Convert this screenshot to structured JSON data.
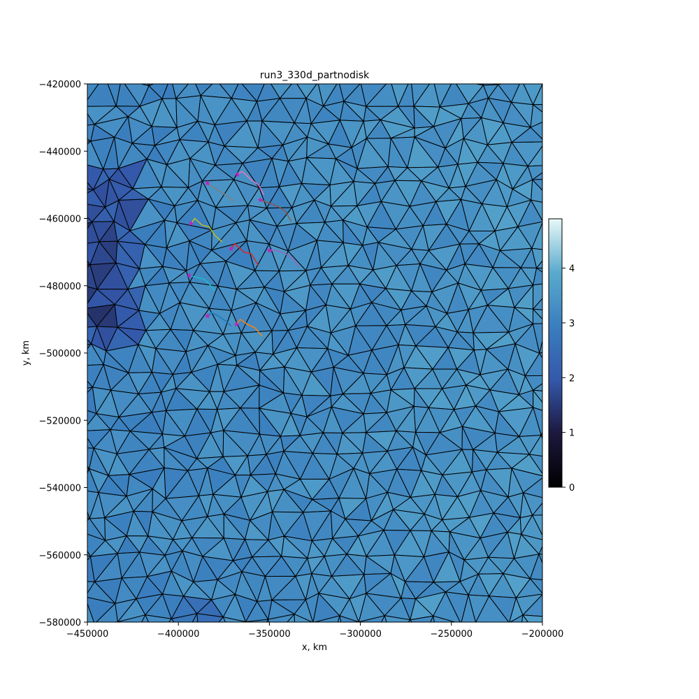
{
  "chart_data": {
    "type": "heatmap",
    "title": "run3_330d_partnodisk",
    "xlabel": "x, km",
    "ylabel": "y, km",
    "xlim": [
      -450000,
      -200000
    ],
    "ylim": [
      -580000,
      -420000
    ],
    "x_ticks": [
      -450000,
      -400000,
      -350000,
      -300000,
      -250000,
      -200000
    ],
    "x_tick_labels": [
      "−450000",
      "−400000",
      "−350000",
      "−300000",
      "−250000",
      "−200000"
    ],
    "y_ticks": [
      -420000,
      -440000,
      -460000,
      -480000,
      -500000,
      -520000,
      -540000,
      -560000,
      -580000
    ],
    "y_tick_labels": [
      "−420000",
      "−440000",
      "−460000",
      "−480000",
      "−500000",
      "−520000",
      "−540000",
      "−560000",
      "−580000"
    ],
    "grid": false,
    "colorbar": {
      "colormap": "cubehelix-like (black-blue-white)",
      "range": [
        0,
        4.9
      ],
      "ticks": [
        0,
        1,
        2,
        3,
        4
      ],
      "tick_labels": [
        "0",
        "1",
        "2",
        "3",
        "4"
      ]
    },
    "mesh": "triangular, black edges, face values mostly 2.5 to 3.8",
    "tracks": [
      {
        "color": "#e377c2",
        "points": [
          [
            -367500,
            -447000
          ],
          [
            -365000,
            -446000
          ],
          [
            -360000,
            -448500
          ],
          [
            -356000,
            -450000
          ],
          [
            -353000,
            -453000
          ]
        ]
      },
      {
        "color": "#7f7f7f",
        "points": [
          [
            -384000,
            -449500
          ],
          [
            -380000,
            -451000
          ],
          [
            -374000,
            -453000
          ],
          [
            -369000,
            -455000
          ]
        ]
      },
      {
        "color": "#8c564b",
        "points": [
          [
            -355000,
            -454500
          ],
          [
            -350000,
            -455500
          ],
          [
            -345000,
            -456500
          ],
          [
            -341000,
            -458000
          ],
          [
            -338000,
            -461000
          ]
        ]
      },
      {
        "color": "#bcbd22",
        "points": [
          [
            -393000,
            -461500
          ],
          [
            -391000,
            -460000
          ],
          [
            -387000,
            -462000
          ],
          [
            -383000,
            -462500
          ],
          [
            -380000,
            -465000
          ],
          [
            -376000,
            -467000
          ]
        ]
      },
      {
        "color": "#d62728",
        "points": [
          [
            -371000,
            -469000
          ],
          [
            -369000,
            -467500
          ],
          [
            -364000,
            -470000
          ],
          [
            -360000,
            -470500
          ],
          [
            -356000,
            -474000
          ]
        ]
      },
      {
        "color": "#9467bd",
        "points": [
          [
            -350000,
            -469500
          ],
          [
            -346000,
            -469500
          ],
          [
            -341000,
            -470500
          ],
          [
            -337000,
            -472000
          ],
          [
            -334000,
            -474500
          ]
        ]
      },
      {
        "color": "#17becf",
        "points": [
          [
            -394000,
            -477000
          ],
          [
            -390000,
            -477500
          ],
          [
            -386000,
            -478000
          ],
          [
            -383000,
            -479500
          ],
          [
            -380000,
            -481500
          ]
        ]
      },
      {
        "color": "#1f77b4",
        "points": [
          [
            -384000,
            -489000
          ],
          [
            -382000,
            -488000
          ],
          [
            -378000,
            -489000
          ],
          [
            -374000,
            -490500
          ],
          [
            -371000,
            -492000
          ]
        ]
      },
      {
        "color": "#ff7f0e",
        "points": [
          [
            -368000,
            -491500
          ],
          [
            -366000,
            -490000
          ],
          [
            -362000,
            -491500
          ],
          [
            -358000,
            -492500
          ],
          [
            -354000,
            -495000
          ]
        ]
      }
    ]
  }
}
